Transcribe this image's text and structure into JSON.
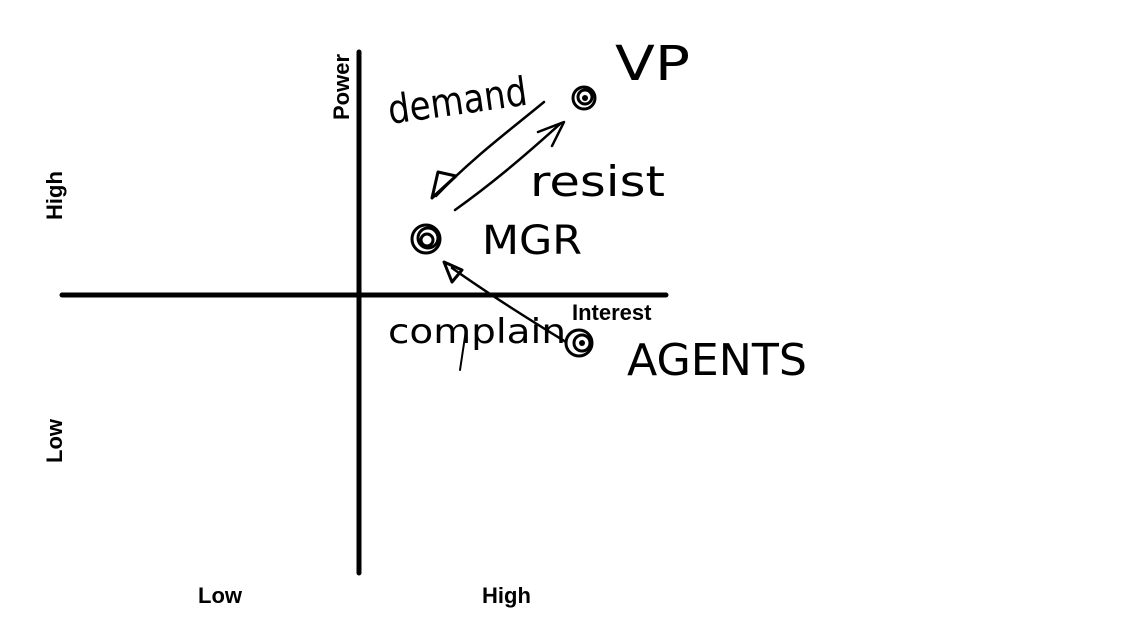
{
  "axes": {
    "y_label": "Power",
    "x_label": "Interest",
    "y_high": "High",
    "y_low": "Low",
    "x_low": "Low",
    "x_high": "High"
  },
  "stakeholders": [
    {
      "label": "VP"
    },
    {
      "label": "MGR"
    },
    {
      "label": "AGENTS"
    }
  ],
  "relations": [
    {
      "label": "demand"
    },
    {
      "label": "resist"
    },
    {
      "label": "complain"
    }
  ]
}
